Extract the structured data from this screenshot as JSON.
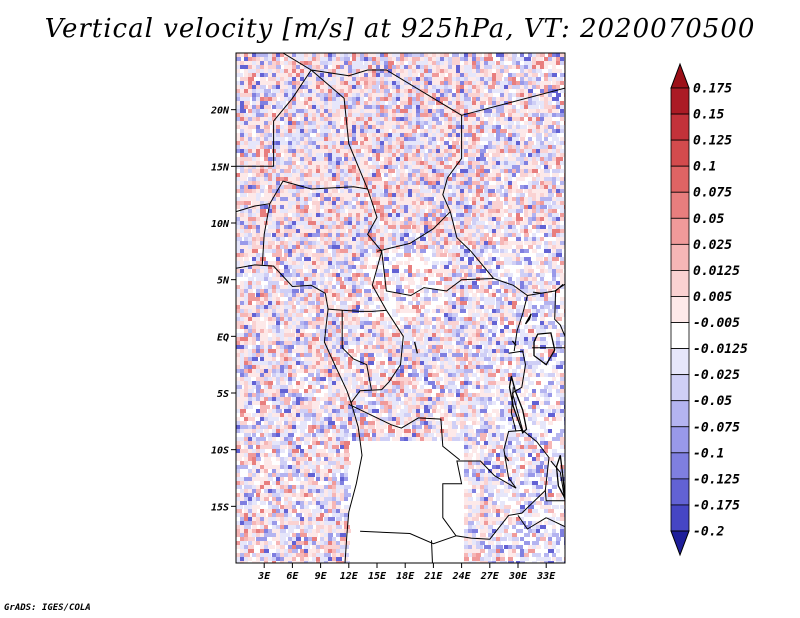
{
  "title": "Vertical velocity [m/s] at 925hPa, VT: 2020070500",
  "credit": "GrADS: IGES/COLA",
  "map": {
    "lon_range": [
      0,
      35
    ],
    "lat_range": [
      -20,
      25
    ],
    "lat_ticks": [
      {
        "lat": 20,
        "label": "20N"
      },
      {
        "lat": 15,
        "label": "15N"
      },
      {
        "lat": 10,
        "label": "10N"
      },
      {
        "lat": 5,
        "label": "5N"
      },
      {
        "lat": 0,
        "label": "EQ"
      },
      {
        "lat": -5,
        "label": "5S"
      },
      {
        "lat": -10,
        "label": "10S"
      },
      {
        "lat": -15,
        "label": "15S"
      }
    ],
    "lon_ticks": [
      {
        "lon": 3,
        "label": "3E"
      },
      {
        "lon": 6,
        "label": "6E"
      },
      {
        "lon": 9,
        "label": "9E"
      },
      {
        "lon": 12,
        "label": "12E"
      },
      {
        "lon": 15,
        "label": "15E"
      },
      {
        "lon": 18,
        "label": "18E"
      },
      {
        "lon": 21,
        "label": "21E"
      },
      {
        "lon": 24,
        "label": "24E"
      },
      {
        "lon": 27,
        "label": "27E"
      },
      {
        "lon": 30,
        "label": "30E"
      },
      {
        "lon": 33,
        "label": "33E"
      }
    ]
  },
  "colorbar": {
    "levels": [
      {
        "label": "0.175",
        "color": "#ab1b25"
      },
      {
        "label": "0.15",
        "color": "#c3323a"
      },
      {
        "label": "0.125",
        "color": "#d34b4d"
      },
      {
        "label": "0.1",
        "color": "#df6464"
      },
      {
        "label": "0.075",
        "color": "#e87e7e"
      },
      {
        "label": "0.05",
        "color": "#f09a9a"
      },
      {
        "label": "0.025",
        "color": "#f6b6b6"
      },
      {
        "label": "0.0125",
        "color": "#fad2d2"
      },
      {
        "label": "0.005",
        "color": "#fde9e9"
      },
      {
        "label": "-0.005",
        "color": "#ffffff"
      },
      {
        "label": "-0.0125",
        "color": "#e6e6fa"
      },
      {
        "label": "-0.025",
        "color": "#cfcff6"
      },
      {
        "label": "-0.05",
        "color": "#b4b4f0"
      },
      {
        "label": "-0.075",
        "color": "#9999e9"
      },
      {
        "label": "-0.1",
        "color": "#7f7fe0"
      },
      {
        "label": "-0.125",
        "color": "#6262d4"
      },
      {
        "label": "-0.175",
        "color": "#4646c4"
      },
      {
        "label": "-0.2",
        "color": "#2a2ab0"
      }
    ],
    "over_color": "#9c1018",
    "under_color": "#1e1e9a"
  }
}
